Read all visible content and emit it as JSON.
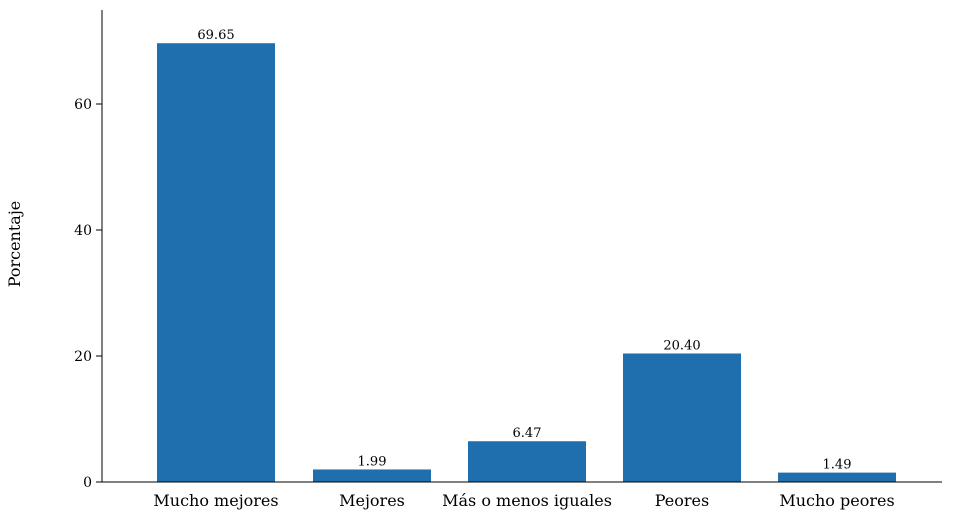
{
  "chart_data": {
    "type": "bar",
    "title": "",
    "xlabel": "",
    "ylabel": "Porcentaje",
    "categories": [
      "Mucho mejores",
      "Mejores",
      "Más o menos iguales",
      "Peores",
      "Mucho peores"
    ],
    "values": [
      69.65,
      1.99,
      6.47,
      20.4,
      1.49
    ],
    "value_labels": [
      "69.65",
      "1.99",
      "6.47",
      "20.40",
      "1.49"
    ],
    "ylim": [
      0,
      75
    ],
    "yticks": [
      0,
      20,
      40,
      60
    ],
    "grid": false,
    "bar_color": "#1f6fae"
  }
}
